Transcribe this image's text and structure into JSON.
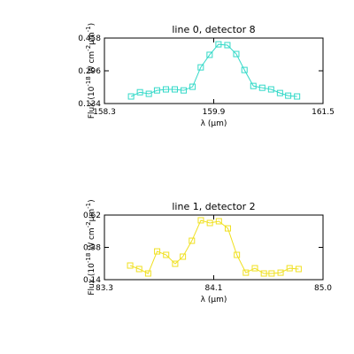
{
  "chart_data": [
    {
      "type": "line",
      "title": "line 0, detector 8",
      "xlabel": "λ (μm)",
      "ylabel": [
        "Flux (10",
        "-18",
        " W cm",
        "-2",
        "μm",
        "-1",
        ")"
      ],
      "x": [
        158.69,
        158.82,
        158.95,
        159.07,
        159.2,
        159.33,
        159.46,
        159.59,
        159.71,
        159.84,
        159.97,
        160.1,
        160.23,
        160.35,
        160.48,
        160.61,
        160.74,
        160.87,
        160.99,
        161.12
      ],
      "series": [
        {
          "color": "#33d9c8",
          "values": [
            0.169,
            0.19,
            0.182,
            0.199,
            0.204,
            0.204,
            0.199,
            0.217,
            0.313,
            0.375,
            0.427,
            0.423,
            0.379,
            0.3,
            0.221,
            0.212,
            0.204,
            0.186,
            0.173,
            0.169
          ]
        }
      ],
      "xlim": [
        158.3,
        161.5
      ],
      "xticks": [
        158.3,
        159.9,
        161.5
      ],
      "ylim": [
        0.134,
        0.458
      ],
      "yticks": [
        0.134,
        0.296,
        0.458
      ]
    },
    {
      "type": "line",
      "title": "line 1, detector 2",
      "xlabel": "λ (μm)",
      "ylabel": [
        "Flux (10",
        "-18",
        " W cm",
        "-2",
        "μm",
        "-1",
        ")"
      ],
      "x": [
        83.5,
        83.57,
        83.64,
        83.71,
        83.78,
        83.85,
        83.91,
        83.98,
        84.05,
        84.12,
        84.19,
        84.26,
        84.33,
        84.4,
        84.47,
        84.54,
        84.6,
        84.67,
        84.74,
        84.81
      ],
      "series": [
        {
          "color": "#f0e020",
          "values": [
            0.245,
            0.219,
            0.186,
            0.35,
            0.324,
            0.258,
            0.311,
            0.429,
            0.581,
            0.561,
            0.574,
            0.521,
            0.324,
            0.192,
            0.225,
            0.186,
            0.186,
            0.192,
            0.225,
            0.219
          ]
        }
      ],
      "xlim": [
        83.3,
        85.0
      ],
      "xticks": [
        83.3,
        {
          "value": 84.15,
          "label": "84.1"
        },
        {
          "value": 85,
          "label": "85.0"
        }
      ],
      "ylim": [
        0.14,
        0.62
      ],
      "yticks": [
        0.14,
        0.38,
        0.62
      ]
    }
  ]
}
